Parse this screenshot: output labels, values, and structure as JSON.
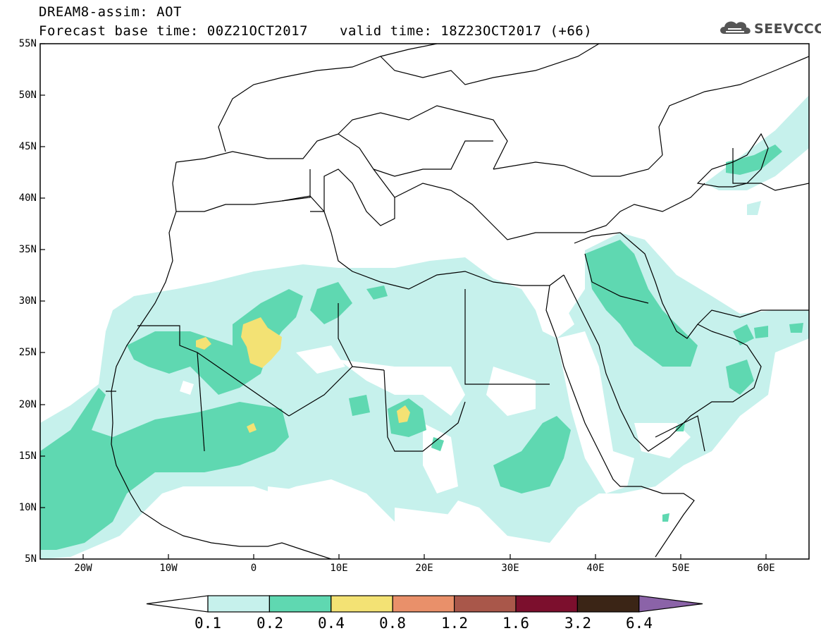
{
  "header": {
    "title_line1": "DREAM8-assim: AOT",
    "title_line2": "Forecast base time: 00Z21OCT2017",
    "valid_time": "valid time: 18Z23OCT2017 (+66)",
    "logo_text": "SEEVCCC"
  },
  "map": {
    "variable": "AOT",
    "lat_labels": [
      "55N",
      "50N",
      "45N",
      "40N",
      "35N",
      "30N",
      "25N",
      "20N",
      "15N",
      "10N",
      "5N"
    ],
    "lon_labels": [
      "20W",
      "10W",
      "0",
      "10E",
      "20E",
      "30E",
      "40E",
      "50E",
      "60E"
    ],
    "lat_range": [
      5,
      55
    ],
    "lon_range": [
      -25,
      65
    ]
  },
  "colorbar": {
    "levels": [
      "0.1",
      "0.2",
      "0.4",
      "0.8",
      "1.2",
      "1.6",
      "3.2",
      "6.4"
    ],
    "colors": [
      "#ffffff",
      "#c6f1ec",
      "#5fd8b1",
      "#f3e274",
      "#e9906a",
      "#a9574a",
      "#7c0f2d",
      "#3b2516",
      "#8b63a8"
    ]
  }
}
